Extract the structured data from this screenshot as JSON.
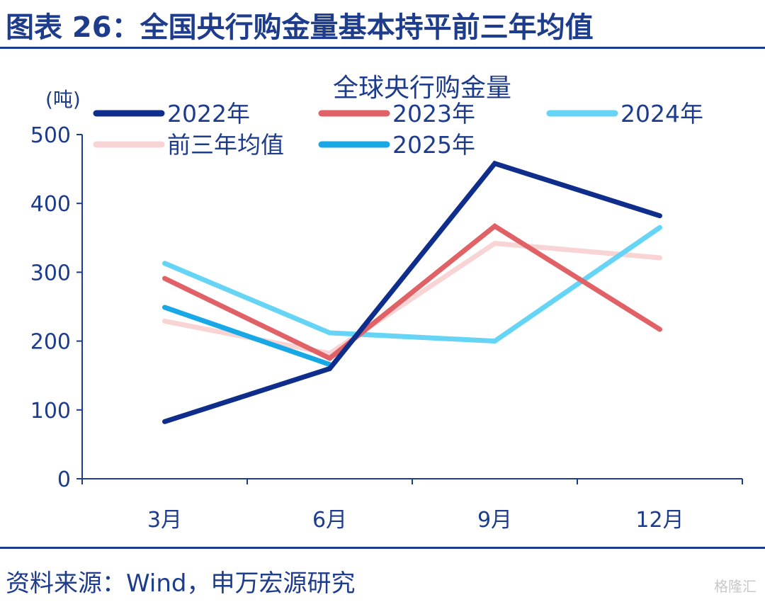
{
  "figure": {
    "title": "图表 26：全国央行购金量基本持平前三年均值",
    "source": "资料来源：Wind，申万宏源研究",
    "watermark": "格隆汇"
  },
  "chart_data": {
    "type": "line",
    "title": "全球央行购金量",
    "unit": "(吨)",
    "categories": [
      "3月",
      "6月",
      "9月",
      "12月"
    ],
    "ylim": [
      0,
      500
    ],
    "yticks": [
      "0",
      "100",
      "200",
      "300",
      "400",
      "500"
    ],
    "grid": false,
    "legend_position": "top",
    "series": [
      {
        "name": "2022年",
        "color": "#0f2e8c",
        "values": [
          83,
          160,
          458,
          382
        ]
      },
      {
        "name": "2023年",
        "color": "#e06266",
        "values": [
          291,
          175,
          367,
          217
        ]
      },
      {
        "name": "2024年",
        "color": "#66d4f5",
        "values": [
          313,
          212,
          200,
          365
        ]
      },
      {
        "name": "前三年均值",
        "color": "#f8d4d4",
        "values": [
          229,
          182,
          342,
          321
        ]
      },
      {
        "name": "2025年",
        "color": "#19a8e6",
        "values": [
          249,
          166,
          null,
          null
        ]
      }
    ]
  }
}
